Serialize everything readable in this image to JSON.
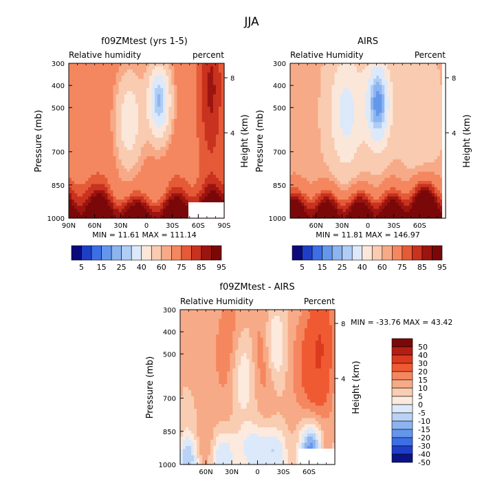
{
  "page_title": "JJA",
  "chart_data": [
    {
      "type": "heatmap",
      "title": "f09ZMtest (yrs 1-5)",
      "left_label": "Relative humidity",
      "right_label": "percent",
      "ylabel": "Pressure (mb)",
      "y2label": "Height (km)",
      "y_ticks": [
        "300",
        "400",
        "500",
        "700",
        "850",
        "1000"
      ],
      "y2_ticks": [
        "8",
        "4"
      ],
      "x_ticks": [
        "90N",
        "60N",
        "30N",
        "0",
        "30S",
        "60S",
        "90S"
      ],
      "stats": "MIN =  11.61   MAX = 111.14",
      "xlim": [
        90,
        -90
      ],
      "ylim": [
        1000,
        300
      ],
      "colorbar_labels": [
        "5",
        "15",
        "25",
        "40",
        "60",
        "75",
        "85",
        "95"
      ]
    },
    {
      "type": "heatmap",
      "title": "AIRS",
      "left_label": "Relative Humidity",
      "right_label": "Percent",
      "ylabel": "Pressure (mb)",
      "y2label": "Height (km)",
      "y_ticks": [
        "300",
        "400",
        "500",
        "700",
        "850",
        "1000"
      ],
      "y2_ticks": [
        "8",
        "4"
      ],
      "x_ticks": [
        "60N",
        "30N",
        "0",
        "30S",
        "60S"
      ],
      "stats": "MIN =  11.81   MAX = 146.97",
      "xlim": [
        90,
        -90
      ],
      "ylim": [
        1000,
        300
      ],
      "colorbar_labels": [
        "5",
        "15",
        "25",
        "40",
        "60",
        "75",
        "85",
        "95"
      ]
    },
    {
      "type": "heatmap",
      "title": "f09ZMtest - AIRS",
      "left_label": "Relative Humidity",
      "right_label": "Percent",
      "ylabel": "Pressure (mb)",
      "y2label": "Height (km)",
      "y_ticks": [
        "300",
        "400",
        "500",
        "700",
        "850",
        "1000"
      ],
      "y2_ticks": [
        "8",
        "4"
      ],
      "x_ticks": [
        "60N",
        "30N",
        "0",
        "30S",
        "60S"
      ],
      "stats": "MIN = -33.76   MAX =  43.42",
      "xlim": [
        90,
        -90
      ],
      "ylim": [
        1000,
        300
      ],
      "colorbar_labels": [
        "50",
        "40",
        "30",
        "20",
        "15",
        "10",
        "5",
        "0",
        "-5",
        "-10",
        "-15",
        "-20",
        "-30",
        "-40",
        "-50"
      ]
    }
  ],
  "colors": {
    "seq_scale": [
      "#0a0a7a",
      "#1e3ec8",
      "#3c6ee6",
      "#6496eb",
      "#8cb4f0",
      "#afcdf5",
      "#dce9fa",
      "#fbe7d9",
      "#f9cbb0",
      "#f7aa87",
      "#f4875f",
      "#e55a37",
      "#c8321e",
      "#9b1410",
      "#7a0808"
    ],
    "div_scale": [
      "#7a0808",
      "#b41e12",
      "#dc3a1e",
      "#f05a32",
      "#f5875f",
      "#f7aa87",
      "#f9cdb2",
      "#fdeade",
      "#dce9fa",
      "#b9d2f5",
      "#8cb4f0",
      "#6496eb",
      "#3c6ee6",
      "#1e3ec8",
      "#0a1486"
    ]
  }
}
